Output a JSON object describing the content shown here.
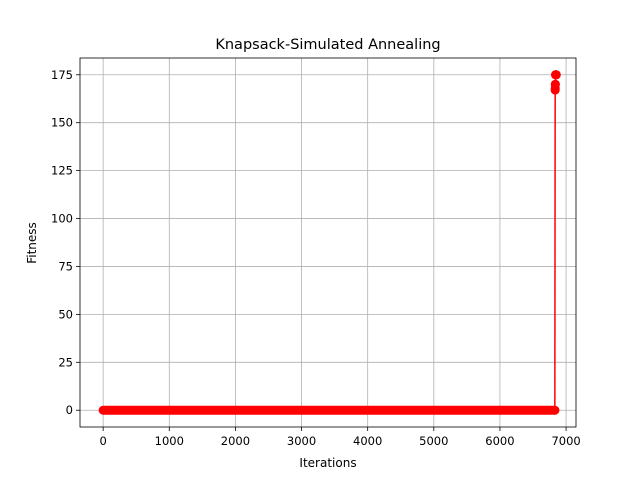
{
  "chart_data": {
    "type": "line",
    "title": "Knapsack-Simulated Annealing",
    "xlabel": "Iterations",
    "ylabel": "Fitness",
    "xlim": [
      -350,
      7150
    ],
    "ylim": [
      -8.75,
      183.75
    ],
    "xticks": [
      0,
      1000,
      2000,
      3000,
      4000,
      5000,
      6000,
      7000
    ],
    "yticks": [
      0,
      25,
      50,
      75,
      100,
      125,
      150,
      175
    ],
    "grid": true,
    "series": [
      {
        "color": "#ff0000",
        "marker": "circle",
        "baseline_segment": {
          "x_start": 0,
          "x_end": 6830,
          "y": 0
        },
        "points": [
          {
            "x": 6835,
            "y": 167
          },
          {
            "x": 6836,
            "y": 168
          },
          {
            "x": 6837,
            "y": 170
          },
          {
            "x": 6838,
            "y": 170
          },
          {
            "x": 6840,
            "y": 175
          },
          {
            "x": 6842,
            "y": 175
          },
          {
            "x": 6845,
            "y": 175
          },
          {
            "x": 6848,
            "y": 175
          },
          {
            "x": 6850,
            "y": 175
          },
          {
            "x": 6852,
            "y": 175
          }
        ]
      }
    ]
  }
}
